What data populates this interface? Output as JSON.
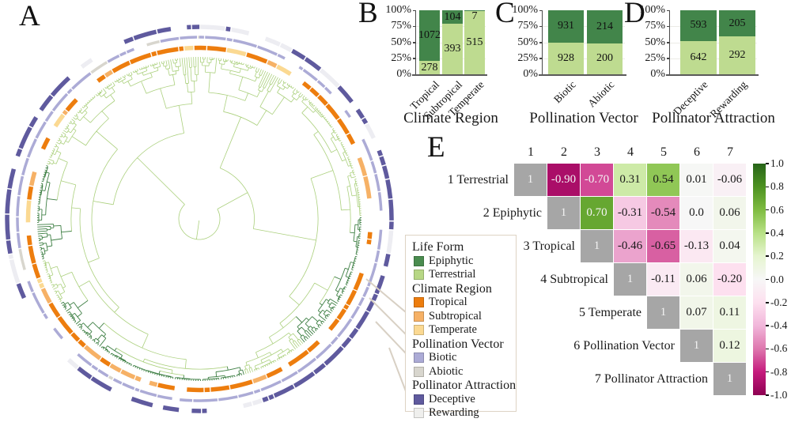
{
  "panels": {
    "a": "A",
    "b": "B",
    "c": "C",
    "d": "D",
    "e": "E"
  },
  "chart_data": [
    {
      "id": "climate",
      "type": "bar",
      "panel_label": "B",
      "title": "Climate Region",
      "categories": [
        "Tropical",
        "Subtropical",
        "Temperate"
      ],
      "series": [
        {
          "name": "Epiphytic",
          "color": "#42854a",
          "values": [
            1072,
            104,
            7
          ]
        },
        {
          "name": "Terrestrial",
          "color": "#bedb90",
          "values": [
            278,
            393,
            515
          ]
        }
      ],
      "y_ticks": [
        "100%",
        "75%",
        "50%",
        "25%",
        "0%"
      ],
      "stacked_percent": true,
      "ylim": [
        0,
        100
      ]
    },
    {
      "id": "pollination",
      "type": "bar",
      "panel_label": "C",
      "title": "Pollination Vector",
      "categories": [
        "Biotic",
        "Abiotic"
      ],
      "series": [
        {
          "name": "Epiphytic",
          "color": "#42854a",
          "values": [
            931,
            214
          ]
        },
        {
          "name": "Terrestrial",
          "color": "#bedb90",
          "values": [
            928,
            200
          ]
        }
      ],
      "y_ticks": [
        "100%",
        "75%",
        "50%",
        "25%",
        "0%"
      ],
      "stacked_percent": true,
      "ylim": [
        0,
        100
      ]
    },
    {
      "id": "attraction",
      "type": "bar",
      "panel_label": "D",
      "title": "Pollinator Attraction",
      "categories": [
        "Deceptive",
        "Rewarding"
      ],
      "series": [
        {
          "name": "Epiphytic",
          "color": "#42854a",
          "values": [
            593,
            205
          ]
        },
        {
          "name": "Terrestrial",
          "color": "#bedb90",
          "values": [
            642,
            292
          ]
        }
      ],
      "y_ticks": [
        "100%",
        "75%",
        "50%",
        "25%",
        "0%"
      ],
      "stacked_percent": true,
      "ylim": [
        0,
        100
      ]
    },
    {
      "id": "correlation",
      "type": "heatmap",
      "panel_label": "E",
      "col_headers": [
        "1",
        "2",
        "3",
        "4",
        "5",
        "6",
        "7"
      ],
      "row_labels": [
        "1 Terrestrial",
        "2 Epiphytic",
        "3 Tropical",
        "4 Subtropical",
        "5 Temperate",
        "6 Pollination Vector",
        "7 Pollinator Attraction"
      ],
      "cells": [
        [
          "1",
          "-0.90",
          "-0.70",
          "0.31",
          "0.54",
          "0.01",
          "-0.06"
        ],
        [
          null,
          "1",
          "0.70",
          "-0.31",
          "-0.54",
          "0.0",
          "0.06"
        ],
        [
          null,
          null,
          "1",
          "-0.46",
          "-0.65",
          "-0.13",
          "0.04"
        ],
        [
          null,
          null,
          null,
          "1",
          "-0.11",
          "0.06",
          "-0.20"
        ],
        [
          null,
          null,
          null,
          null,
          "1",
          "0.07",
          "0.11"
        ],
        [
          null,
          null,
          null,
          null,
          null,
          "1",
          "0.12"
        ],
        [
          null,
          null,
          null,
          null,
          null,
          null,
          "1"
        ]
      ],
      "value_range": [
        -1,
        1
      ],
      "diagonal_color": "#a6a6a6",
      "colorbar_ticks": [
        "1.0",
        "0.8",
        "0.6",
        "0.4",
        "0.2",
        "0.0",
        "-0.2",
        "-0.4",
        "-0.6",
        "-0.8",
        "-1.0"
      ]
    }
  ],
  "legend": {
    "groups": [
      {
        "title": "Life Form",
        "items": [
          {
            "label": "Epiphytic",
            "color": "#4a8c4f"
          },
          {
            "label": "Terrestrial",
            "color": "#b7d785"
          }
        ]
      },
      {
        "title": "Climate Region",
        "items": [
          {
            "label": "Tropical",
            "color": "#ed7d0e"
          },
          {
            "label": "Subtropical",
            "color": "#f6b166"
          },
          {
            "label": "Temperate",
            "color": "#fbd992"
          }
        ]
      },
      {
        "title": "Pollination Vector",
        "items": [
          {
            "label": "Biotic",
            "color": "#acabd6"
          },
          {
            "label": "Abiotic",
            "color": "#d8d6ce"
          }
        ]
      },
      {
        "title": "Pollinator Attraction",
        "items": [
          {
            "label": "Deceptive",
            "color": "#5f5a9e"
          },
          {
            "label": "Rewarding",
            "color": "#efefed"
          }
        ]
      }
    ]
  },
  "tree": {
    "branch_colors": {
      "Epiphytic": "#3e7f44",
      "Terrestrial": "#abd07d"
    },
    "rings": [
      {
        "name": "Climate Region",
        "colors": {
          "Tropical": "#ed7d0e",
          "Subtropical": "#f6b166",
          "Temperate": "#fbd992"
        }
      },
      {
        "name": "Pollination Vector",
        "colors": {
          "Biotic": "#acabd6",
          "Abiotic": "#d8d6ce"
        }
      },
      {
        "name": "Pollinator Attraction",
        "colors": {
          "Deceptive": "#5f5a9e",
          "Rewarding": "#ededf2"
        }
      }
    ]
  }
}
